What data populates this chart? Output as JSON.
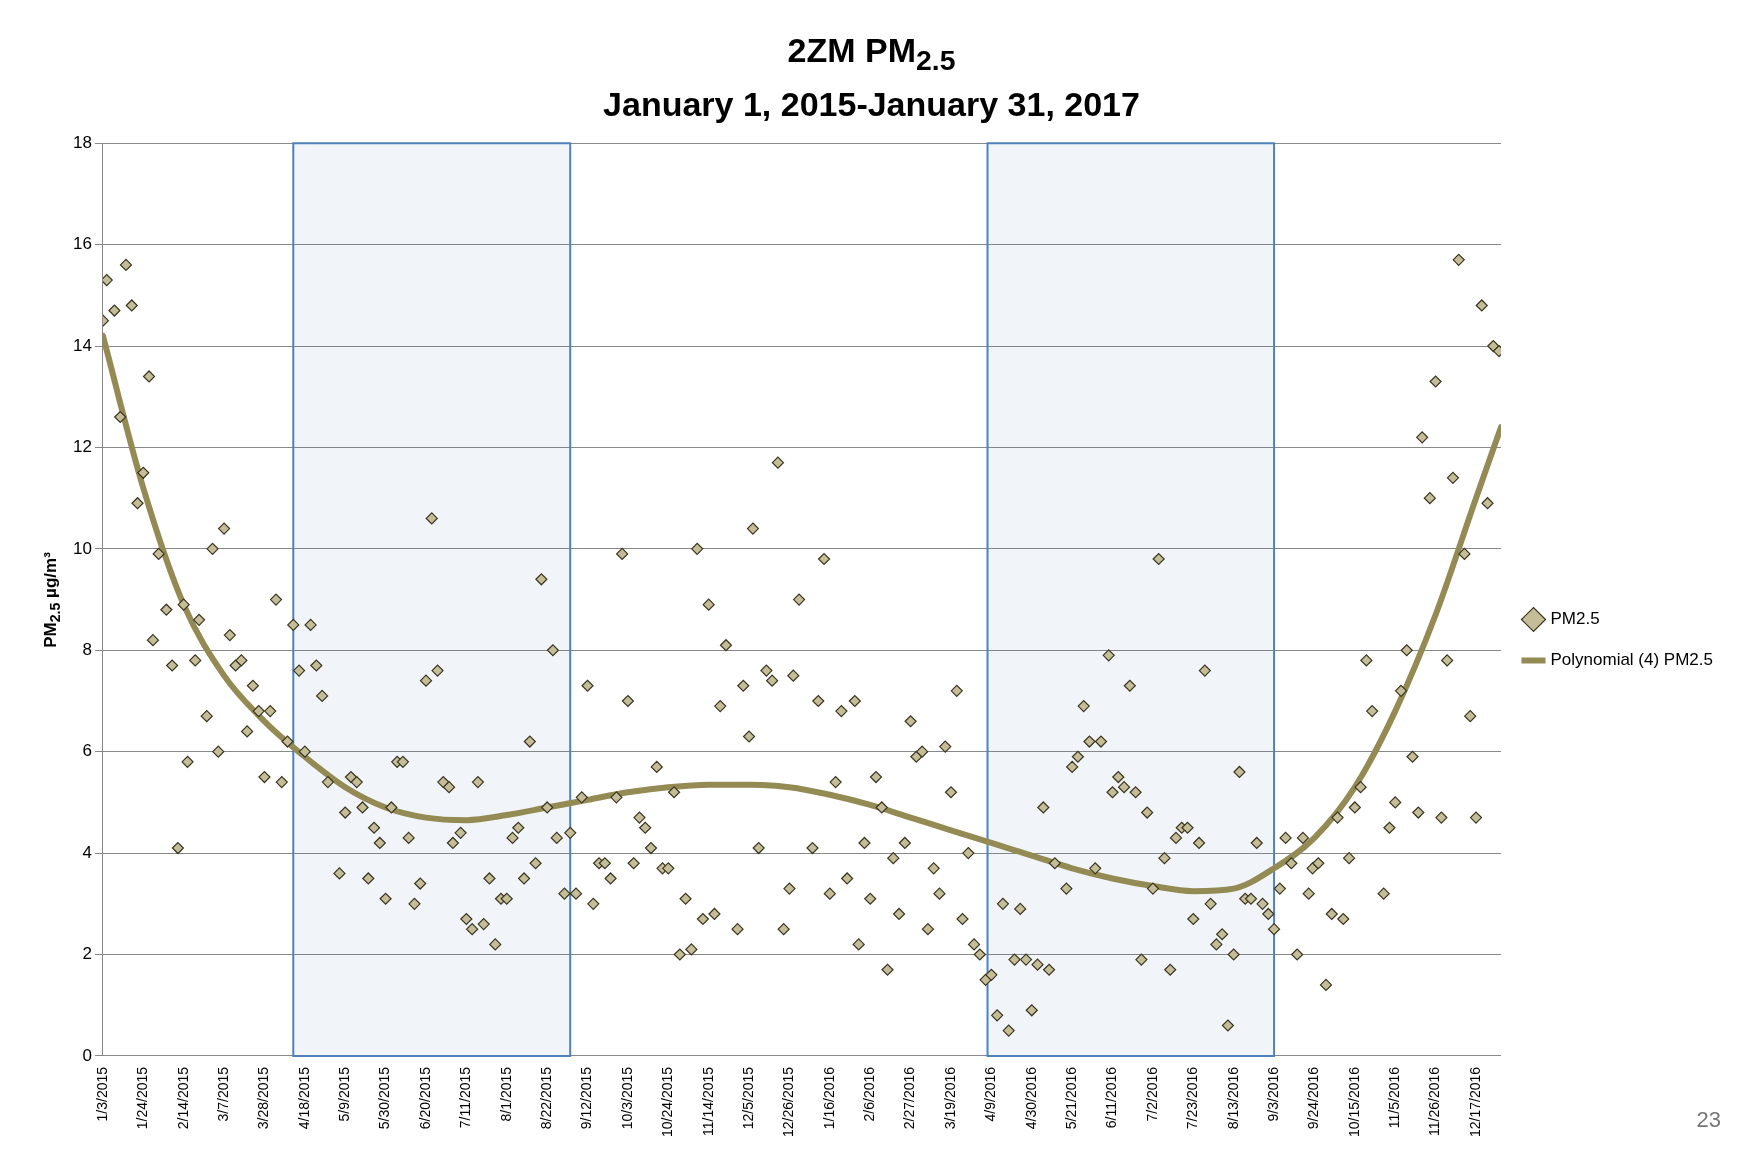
{
  "chart_data": {
    "type": "scatter",
    "title": "2ZM PM$_{2.5}$\nJanuary 1, 2015-January 31, 2017",
    "ylabel": "PM$_{2.5}$ µg/m³",
    "xlim": [
      "2015-01-03",
      "2016-12-30"
    ],
    "xticks": [
      {
        "value": "2015-01-03",
        "label": "1/3/2015"
      },
      {
        "value": "2015-01-24",
        "label": "1/24/2015"
      },
      {
        "value": "2015-02-14",
        "label": "2/14/2015"
      },
      {
        "value": "2015-03-07",
        "label": "3/7/2015"
      },
      {
        "value": "2015-03-28",
        "label": "3/28/2015"
      },
      {
        "value": "2015-04-18",
        "label": "4/18/2015"
      },
      {
        "value": "2015-05-09",
        "label": "5/9/2015"
      },
      {
        "value": "2015-05-30",
        "label": "5/30/2015"
      },
      {
        "value": "2015-06-20",
        "label": "6/20/2015"
      },
      {
        "value": "2015-07-11",
        "label": "7/11/2015"
      },
      {
        "value": "2015-08-01",
        "label": "8/1/2015"
      },
      {
        "value": "2015-08-22",
        "label": "8/22/2015"
      },
      {
        "value": "2015-09-12",
        "label": "9/12/2015"
      },
      {
        "value": "2015-10-03",
        "label": "10/3/2015"
      },
      {
        "value": "2015-10-24",
        "label": "10/24/2015"
      },
      {
        "value": "2015-11-14",
        "label": "11/14/2015"
      },
      {
        "value": "2015-12-05",
        "label": "12/5/2015"
      },
      {
        "value": "2015-12-26",
        "label": "12/26/2015"
      },
      {
        "value": "2016-01-16",
        "label": "1/16/2016"
      },
      {
        "value": "2016-02-06",
        "label": "2/6/2016"
      },
      {
        "value": "2016-02-27",
        "label": "2/27/2016"
      },
      {
        "value": "2016-03-19",
        "label": "3/19/2016"
      },
      {
        "value": "2016-04-09",
        "label": "4/9/2016"
      },
      {
        "value": "2016-04-30",
        "label": "4/30/2016"
      },
      {
        "value": "2016-05-21",
        "label": "5/21/2016"
      },
      {
        "value": "2016-06-11",
        "label": "6/11/2016"
      },
      {
        "value": "2016-07-02",
        "label": "7/2/2016"
      },
      {
        "value": "2016-07-23",
        "label": "7/23/2016"
      },
      {
        "value": "2016-08-13",
        "label": "8/13/2016"
      },
      {
        "value": "2016-09-03",
        "label": "9/3/2016"
      },
      {
        "value": "2016-09-24",
        "label": "9/24/2016"
      },
      {
        "value": "2016-10-15",
        "label": "10/15/2016"
      },
      {
        "value": "2016-11-05",
        "label": "11/5/2016"
      },
      {
        "value": "2016-11-26",
        "label": "11/26/2016"
      },
      {
        "value": "2016-12-17",
        "label": "12/17/2016"
      }
    ],
    "ylim": [
      0,
      18
    ],
    "yticks": [
      0,
      2,
      4,
      6,
      8,
      10,
      12,
      14,
      16,
      18
    ],
    "grid": "y",
    "legend": "right",
    "marker": "diamond",
    "bands": [
      {
        "axis": "x",
        "from": "2015-04-12",
        "to": "2015-09-03",
        "color": "#4f81bd"
      },
      {
        "axis": "x",
        "from": "2016-04-07",
        "to": "2016-09-03",
        "color": "#4f81bd"
      }
    ],
    "annotations": [
      "23"
    ],
    "series": [
      {
        "name": "PM2.5",
        "color": "#c4bd97",
        "x": [
          "2015-01-03",
          "2015-01-05",
          "2015-01-09",
          "2015-01-12",
          "2015-01-15",
          "2015-01-18",
          "2015-01-21",
          "2015-01-24",
          "2015-01-27",
          "2015-01-29",
          "2015-02-01",
          "2015-02-05",
          "2015-02-08",
          "2015-02-11",
          "2015-02-14",
          "2015-02-16",
          "2015-02-20",
          "2015-02-22",
          "2015-02-26",
          "2015-03-01",
          "2015-03-04",
          "2015-03-07",
          "2015-03-10",
          "2015-03-13",
          "2015-03-16",
          "2015-03-19",
          "2015-03-22",
          "2015-03-25",
          "2015-03-28",
          "2015-03-31",
          "2015-04-03",
          "2015-04-06",
          "2015-04-09",
          "2015-04-12",
          "2015-04-15",
          "2015-04-18",
          "2015-04-21",
          "2015-04-24",
          "2015-04-27",
          "2015-04-30",
          "2015-05-06",
          "2015-05-09",
          "2015-05-12",
          "2015-05-15",
          "2015-05-18",
          "2015-05-21",
          "2015-05-24",
          "2015-05-27",
          "2015-05-30",
          "2015-06-02",
          "2015-06-05",
          "2015-06-08",
          "2015-06-11",
          "2015-06-14",
          "2015-06-17",
          "2015-06-20",
          "2015-06-23",
          "2015-06-26",
          "2015-06-29",
          "2015-07-02",
          "2015-07-04",
          "2015-07-08",
          "2015-07-11",
          "2015-07-14",
          "2015-07-17",
          "2015-07-20",
          "2015-07-23",
          "2015-07-26",
          "2015-07-29",
          "2015-08-01",
          "2015-08-04",
          "2015-08-07",
          "2015-08-10",
          "2015-08-13",
          "2015-08-16",
          "2015-08-19",
          "2015-08-22",
          "2015-08-25",
          "2015-08-27",
          "2015-08-31",
          "2015-09-03",
          "2015-09-06",
          "2015-09-09",
          "2015-09-12",
          "2015-09-15",
          "2015-09-18",
          "2015-09-21",
          "2015-09-24",
          "2015-09-27",
          "2015-09-30",
          "2015-10-03",
          "2015-10-06",
          "2015-10-09",
          "2015-10-12",
          "2015-10-15",
          "2015-10-18",
          "2015-10-21",
          "2015-10-24",
          "2015-10-27",
          "2015-10-30",
          "2015-11-02",
          "2015-11-05",
          "2015-11-08",
          "2015-11-11",
          "2015-11-14",
          "2015-11-17",
          "2015-11-20",
          "2015-11-23",
          "2015-11-29",
          "2015-12-02",
          "2015-12-05",
          "2015-12-07",
          "2015-12-10",
          "2015-12-14",
          "2015-12-17",
          "2015-12-20",
          "2015-12-23",
          "2015-12-26",
          "2015-12-28",
          "2015-12-31",
          "2016-01-07",
          "2016-01-10",
          "2016-01-13",
          "2016-01-16",
          "2016-01-19",
          "2016-01-22",
          "2016-01-25",
          "2016-01-29",
          "2016-01-31",
          "2016-02-03",
          "2016-02-06",
          "2016-02-09",
          "2016-02-12",
          "2016-02-15",
          "2016-02-18",
          "2016-02-21",
          "2016-02-24",
          "2016-02-27",
          "2016-03-01",
          "2016-03-04",
          "2016-03-07",
          "2016-03-10",
          "2016-03-13",
          "2016-03-16",
          "2016-03-19",
          "2016-03-22",
          "2016-03-25",
          "2016-03-28",
          "2016-03-31",
          "2016-04-03",
          "2016-04-06",
          "2016-04-09",
          "2016-04-12",
          "2016-04-15",
          "2016-04-18",
          "2016-04-21",
          "2016-04-24",
          "2016-04-27",
          "2016-04-30",
          "2016-05-03",
          "2016-05-06",
          "2016-05-09",
          "2016-05-12",
          "2016-05-18",
          "2016-05-21",
          "2016-05-24",
          "2016-05-27",
          "2016-05-30",
          "2016-06-02",
          "2016-06-05",
          "2016-06-09",
          "2016-06-11",
          "2016-06-14",
          "2016-06-17",
          "2016-06-20",
          "2016-06-23",
          "2016-06-26",
          "2016-06-29",
          "2016-07-02",
          "2016-07-05",
          "2016-07-08",
          "2016-07-11",
          "2016-07-14",
          "2016-07-17",
          "2016-07-20",
          "2016-07-23",
          "2016-07-26",
          "2016-07-29",
          "2016-08-01",
          "2016-08-04",
          "2016-08-07",
          "2016-08-10",
          "2016-08-13",
          "2016-08-16",
          "2016-08-19",
          "2016-08-22",
          "2016-08-25",
          "2016-08-28",
          "2016-08-31",
          "2016-09-03",
          "2016-09-06",
          "2016-09-09",
          "2016-09-12",
          "2016-09-15",
          "2016-09-18",
          "2016-09-21",
          "2016-09-23",
          "2016-09-26",
          "2016-09-30",
          "2016-10-03",
          "2016-10-06",
          "2016-10-09",
          "2016-10-12",
          "2016-10-15",
          "2016-10-18",
          "2016-10-21",
          "2016-10-24",
          "2016-10-30",
          "2016-11-02",
          "2016-11-05",
          "2016-11-08",
          "2016-11-11",
          "2016-11-14",
          "2016-11-17",
          "2016-11-19",
          "2016-11-23",
          "2016-11-26",
          "2016-11-29",
          "2016-12-02",
          "2016-12-05",
          "2016-12-08",
          "2016-12-11",
          "2016-12-14",
          "2016-12-17",
          "2016-12-20",
          "2016-12-23",
          "2016-12-26",
          "2016-12-29"
        ],
        "values": [
          14.5,
          15.3,
          14.7,
          12.6,
          15.6,
          14.8,
          10.9,
          11.5,
          13.4,
          8.2,
          9.9,
          8.8,
          7.7,
          4.1,
          8.9,
          5.8,
          7.8,
          8.6,
          6.7,
          10.0,
          6.0,
          10.4,
          8.3,
          7.7,
          7.8,
          6.4,
          7.3,
          6.8,
          5.5,
          6.8,
          9.0,
          5.4,
          6.2,
          8.5,
          7.6,
          6.0,
          8.5,
          7.7,
          7.1,
          5.4,
          3.6,
          4.8,
          5.5,
          5.4,
          4.9,
          3.5,
          4.5,
          4.2,
          3.1,
          4.9,
          5.8,
          5.8,
          4.3,
          3.0,
          3.4,
          7.4,
          10.6,
          7.6,
          5.4,
          5.3,
          4.2,
          4.4,
          2.7,
          2.5,
          5.4,
          2.6,
          3.5,
          2.2,
          3.1,
          3.1,
          4.3,
          4.5,
          3.5,
          6.2,
          3.8,
          9.4,
          4.9,
          8.0,
          4.3,
          3.2,
          4.4,
          3.2,
          5.1,
          7.3,
          3.0,
          3.8,
          3.8,
          3.5,
          5.1,
          9.9,
          7.0,
          3.8,
          4.7,
          4.5,
          4.1,
          5.7,
          3.7,
          3.7,
          5.2,
          2.0,
          3.1,
          2.1,
          10.0,
          2.7,
          8.9,
          2.8,
          6.9,
          8.1,
          2.5,
          7.3,
          6.3,
          10.4,
          4.1,
          7.6,
          7.4,
          11.7,
          2.5,
          3.3,
          7.5,
          9.0,
          4.1,
          7.0,
          9.8,
          3.2,
          5.4,
          6.8,
          3.5,
          7.0,
          2.2,
          4.2,
          3.1,
          5.5,
          4.9,
          1.7,
          3.9,
          2.8,
          4.2,
          6.6,
          5.9,
          6.0,
          2.5,
          3.7,
          3.2,
          6.1,
          5.2,
          7.2,
          2.7,
          4.0,
          2.2,
          2.0,
          1.5,
          1.6,
          0.8,
          3.0,
          0.5,
          1.9,
          2.9,
          1.9,
          0.9,
          1.8,
          4.9,
          1.7,
          3.8,
          3.3,
          5.7,
          5.9,
          6.9,
          6.2,
          3.7,
          6.2,
          7.9,
          5.2,
          5.5,
          5.3,
          7.3,
          5.2,
          1.9,
          4.8,
          3.3,
          9.8,
          3.9,
          1.7,
          4.3,
          4.5,
          4.5,
          2.7,
          4.2,
          7.6,
          3.0,
          2.2,
          2.4,
          0.6,
          2.0,
          5.6,
          3.1,
          3.1,
          4.2,
          3.0,
          2.8,
          2.5,
          3.3,
          4.3,
          3.8,
          2.0,
          4.3,
          3.2,
          3.7,
          3.8,
          1.4,
          2.8,
          4.7,
          2.7,
          3.9,
          4.9,
          5.3,
          7.8,
          6.8,
          3.2,
          4.5,
          5.0,
          7.2,
          8.0,
          5.9,
          4.8,
          12.2,
          11.0,
          13.3,
          4.7,
          7.8,
          11.4,
          15.7,
          9.9,
          6.7,
          4.7,
          14.8,
          10.9,
          14.0,
          13.9
        ]
      },
      {
        "name": "Polynomial (4) PM2.5",
        "type": "line",
        "color": "#948a54",
        "marker": "none",
        "x": [
          "2015-01-03",
          "2015-01-24",
          "2015-02-14",
          "2015-03-07",
          "2015-03-28",
          "2015-04-18",
          "2015-05-09",
          "2015-05-30",
          "2015-06-20",
          "2015-07-11",
          "2015-08-01",
          "2015-08-22",
          "2015-09-12",
          "2015-10-03",
          "2015-10-24",
          "2015-11-14",
          "2015-12-05",
          "2015-12-26",
          "2016-01-16",
          "2016-02-06",
          "2016-02-27",
          "2016-03-19",
          "2016-04-09",
          "2016-04-30",
          "2016-05-21",
          "2016-06-11",
          "2016-07-02",
          "2016-07-23",
          "2016-08-13",
          "2016-09-03",
          "2016-09-24",
          "2016-10-15",
          "2016-11-05",
          "2016-11-26",
          "2016-12-17",
          "2016-12-30"
        ],
        "values": [
          14.2,
          11.2,
          8.9,
          7.5,
          6.6,
          5.9,
          5.3,
          4.9,
          4.7,
          4.65,
          4.75,
          4.9,
          5.05,
          5.2,
          5.3,
          5.35,
          5.35,
          5.3,
          5.15,
          4.95,
          4.7,
          4.45,
          4.2,
          3.95,
          3.7,
          3.5,
          3.35,
          3.25,
          3.3,
          3.7,
          4.3,
          5.3,
          6.8,
          8.7,
          11.0,
          12.4
        ]
      }
    ]
  }
}
